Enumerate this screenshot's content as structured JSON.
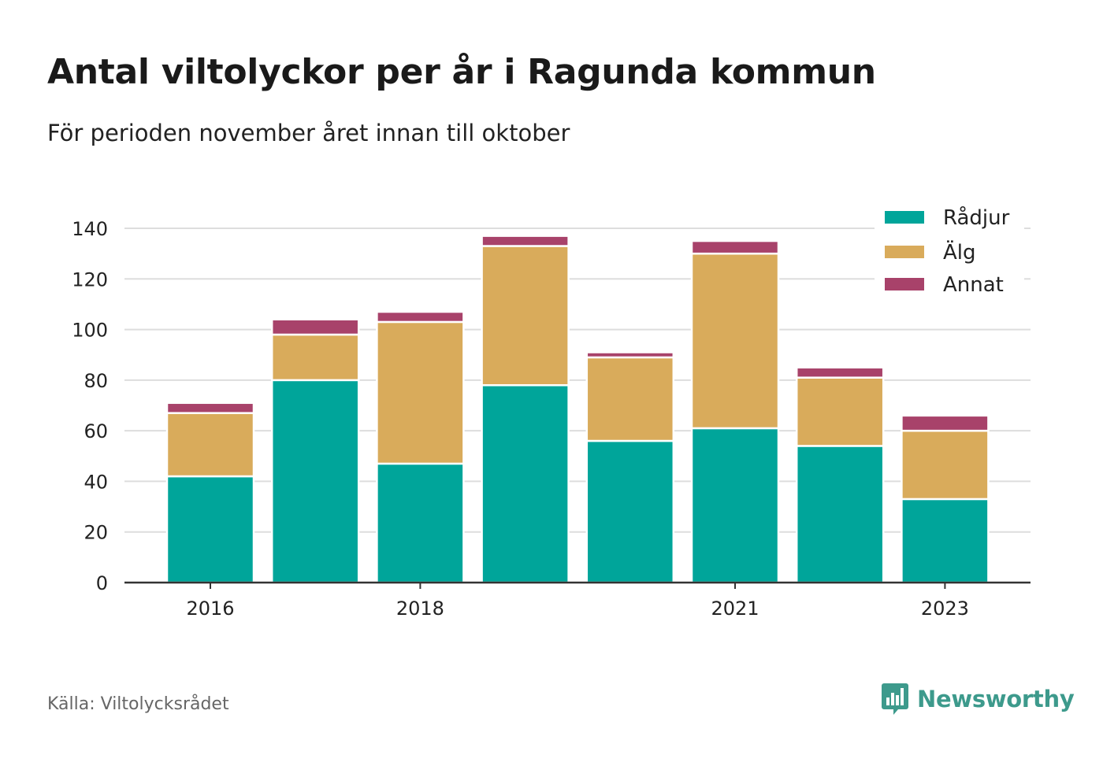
{
  "header": {
    "title": "Antal viltolyckor per år i Ragunda kommun",
    "subtitle": "För perioden november året innan till oktober"
  },
  "footer": {
    "source": "Källa: Viltolycksrådet",
    "brand": "Newsworthy",
    "brand_icon": "bar-chart-speech-bubble-icon"
  },
  "colors": {
    "radjur": "#00a59a",
    "alg": "#d9ab5b",
    "annat": "#a8426a",
    "grid": "#dddddd",
    "axis": "#333333",
    "brand": "#3d9a8c"
  },
  "chart_data": {
    "type": "bar",
    "stacked": true,
    "categories": [
      "2016",
      "2017",
      "2018",
      "2019",
      "2020",
      "2021",
      "2022",
      "2023"
    ],
    "tick_labels": [
      "2016",
      "",
      "2018",
      "",
      "",
      "2021",
      "",
      "2023"
    ],
    "series": [
      {
        "name": "Rådjur",
        "color": "#00a59a",
        "values": [
          42,
          80,
          47,
          78,
          56,
          61,
          54,
          33
        ]
      },
      {
        "name": "Älg",
        "color": "#d9ab5b",
        "values": [
          25,
          18,
          56,
          55,
          33,
          69,
          27,
          27
        ]
      },
      {
        "name": "Annat",
        "color": "#a8426a",
        "values": [
          4,
          6,
          4,
          4,
          2,
          5,
          4,
          6
        ]
      }
    ],
    "ylim": [
      0,
      140
    ],
    "yticks": [
      0,
      20,
      40,
      60,
      80,
      100,
      120,
      140
    ],
    "grid": true,
    "legend_position": "top-right"
  }
}
